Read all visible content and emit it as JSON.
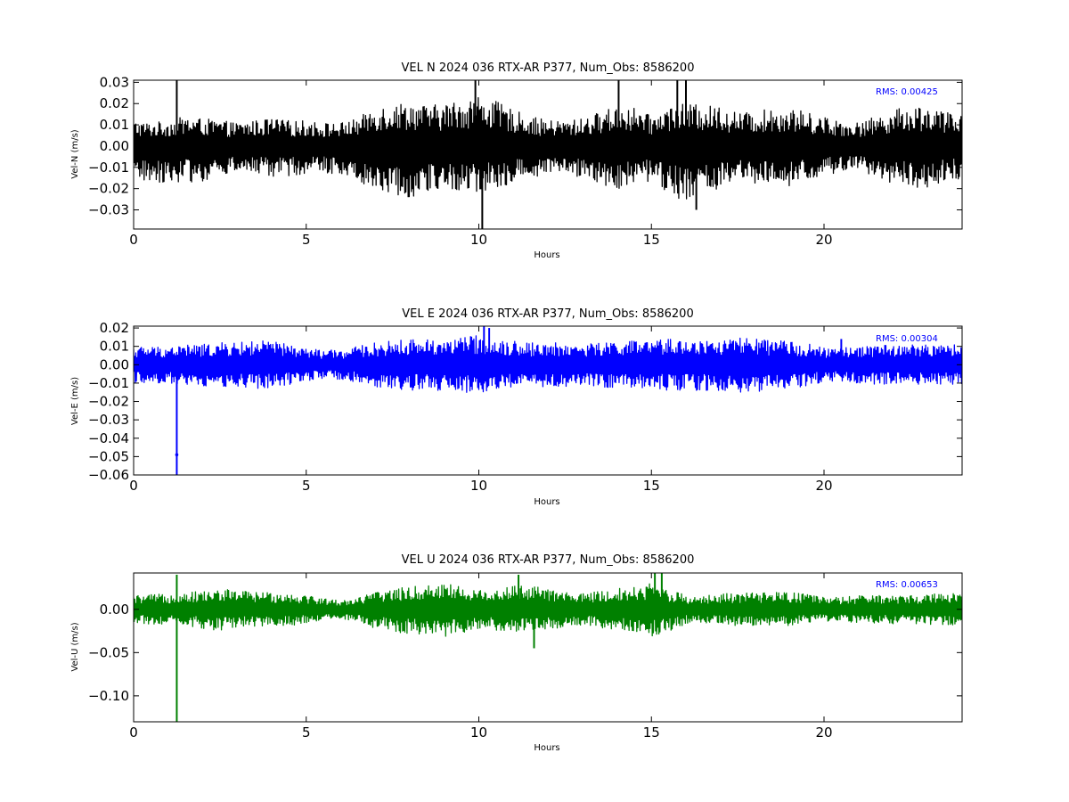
{
  "chart_data": [
    {
      "type": "line",
      "title": "VEL N 2024 036 RTX-AR  P377, Num_Obs: 8586200",
      "xlabel": "Hours",
      "ylabel": "Vel-N (m/s)",
      "xlim": [
        0,
        24
      ],
      "ylim": [
        -0.039,
        0.031
      ],
      "xticks": [
        0,
        5,
        10,
        15,
        20
      ],
      "xtick_labels": [
        "0",
        "5",
        "10",
        "15",
        "20"
      ],
      "yticks": [
        0.03,
        0.02,
        0.01,
        0.0,
        -0.01,
        -0.02,
        -0.03
      ],
      "ytick_labels": [
        "0.03",
        "0.02",
        "0.01",
        "0.00",
        "−0.01",
        "−0.02",
        "−0.03"
      ],
      "annotation": "RMS:  0.00425",
      "annotation_color": "#0000ff",
      "grid": false,
      "series": [
        {
          "color": "#000000",
          "rms": 0.00425,
          "envelope": {
            "x": [
              0,
              0.5,
              1,
              1.5,
              2,
              2.5,
              3,
              3.5,
              4,
              4.5,
              5,
              5.5,
              6,
              6.5,
              7,
              7.5,
              8,
              8.5,
              9,
              9.5,
              10,
              10.5,
              11,
              11.5,
              12,
              12.5,
              13,
              13.5,
              14,
              14.5,
              15,
              15.5,
              16,
              16.5,
              17,
              17.5,
              18,
              18.5,
              19,
              19.5,
              20,
              20.5,
              21,
              21.5,
              22,
              22.5,
              23,
              23.5,
              24
            ],
            "upper": [
              0.012,
              0.011,
              0.012,
              0.014,
              0.013,
              0.012,
              0.011,
              0.012,
              0.013,
              0.012,
              0.012,
              0.011,
              0.011,
              0.013,
              0.019,
              0.02,
              0.021,
              0.019,
              0.02,
              0.022,
              0.024,
              0.021,
              0.017,
              0.014,
              0.012,
              0.012,
              0.013,
              0.016,
              0.019,
              0.018,
              0.014,
              0.019,
              0.02,
              0.019,
              0.019,
              0.016,
              0.016,
              0.018,
              0.018,
              0.016,
              0.014,
              0.012,
              0.011,
              0.014,
              0.017,
              0.019,
              0.019,
              0.016,
              0.015
            ],
            "lower": [
              -0.016,
              -0.017,
              -0.017,
              -0.017,
              -0.017,
              -0.014,
              -0.012,
              -0.013,
              -0.015,
              -0.014,
              -0.013,
              -0.013,
              -0.013,
              -0.016,
              -0.021,
              -0.023,
              -0.024,
              -0.022,
              -0.021,
              -0.021,
              -0.023,
              -0.02,
              -0.017,
              -0.015,
              -0.013,
              -0.013,
              -0.015,
              -0.018,
              -0.02,
              -0.02,
              -0.016,
              -0.024,
              -0.025,
              -0.023,
              -0.02,
              -0.018,
              -0.018,
              -0.019,
              -0.02,
              -0.016,
              -0.014,
              -0.013,
              -0.012,
              -0.014,
              -0.018,
              -0.019,
              -0.02,
              -0.017,
              -0.015
            ]
          },
          "spikes": [
            {
              "x": 1.25,
              "y": 0.031
            },
            {
              "x": 9.9,
              "y": 0.031
            },
            {
              "x": 10.1,
              "y": -0.039
            },
            {
              "x": 14.05,
              "y": 0.031
            },
            {
              "x": 15.75,
              "y": 0.031
            },
            {
              "x": 16.0,
              "y": 0.031
            },
            {
              "x": 16.3,
              "y": -0.03
            }
          ]
        }
      ]
    },
    {
      "type": "line",
      "title": "VEL E 2024 036 RTX-AR  P377, Num_Obs: 8586200",
      "xlabel": "Hours",
      "ylabel": "Vel-E (m/s)",
      "xlim": [
        0,
        24
      ],
      "ylim": [
        -0.06,
        0.021
      ],
      "xticks": [
        0,
        5,
        10,
        15,
        20
      ],
      "xtick_labels": [
        "0",
        "5",
        "10",
        "15",
        "20"
      ],
      "yticks": [
        0.02,
        0.01,
        0.0,
        -0.01,
        -0.02,
        -0.03,
        -0.04,
        -0.05,
        -0.06
      ],
      "ytick_labels": [
        "0.02",
        "0.01",
        "0.00",
        "−0.01",
        "−0.02",
        "−0.03",
        "−0.04",
        "−0.05",
        "−0.06"
      ],
      "annotation": "RMS:  0.00304",
      "annotation_color": "#0000ff",
      "grid": false,
      "series": [
        {
          "color": "#0000ff",
          "rms": 0.00304,
          "envelope": {
            "x": [
              0,
              0.5,
              1,
              1.5,
              2,
              2.5,
              3,
              3.5,
              4,
              4.5,
              5,
              5.5,
              6,
              6.5,
              7,
              7.5,
              8,
              8.5,
              9,
              9.5,
              10,
              10.5,
              11,
              11.5,
              12,
              12.5,
              13,
              13.5,
              14,
              14.5,
              15,
              15.5,
              16,
              16.5,
              17,
              17.5,
              18,
              18.5,
              19,
              19.5,
              20,
              20.5,
              21,
              21.5,
              22,
              22.5,
              23,
              23.5,
              24
            ],
            "upper": [
              0.01,
              0.01,
              0.01,
              0.011,
              0.011,
              0.012,
              0.012,
              0.013,
              0.013,
              0.011,
              0.009,
              0.008,
              0.008,
              0.01,
              0.012,
              0.013,
              0.014,
              0.014,
              0.014,
              0.015,
              0.016,
              0.014,
              0.013,
              0.012,
              0.012,
              0.012,
              0.011,
              0.012,
              0.013,
              0.013,
              0.013,
              0.014,
              0.014,
              0.013,
              0.014,
              0.015,
              0.014,
              0.013,
              0.013,
              0.012,
              0.009,
              0.009,
              0.01,
              0.011,
              0.011,
              0.011,
              0.011,
              0.011,
              0.011
            ],
            "lower": [
              -0.01,
              -0.01,
              -0.01,
              -0.011,
              -0.012,
              -0.012,
              -0.012,
              -0.013,
              -0.013,
              -0.011,
              -0.009,
              -0.008,
              -0.008,
              -0.01,
              -0.012,
              -0.013,
              -0.014,
              -0.014,
              -0.014,
              -0.015,
              -0.016,
              -0.014,
              -0.013,
              -0.012,
              -0.012,
              -0.012,
              -0.011,
              -0.012,
              -0.013,
              -0.013,
              -0.013,
              -0.014,
              -0.014,
              -0.014,
              -0.014,
              -0.016,
              -0.015,
              -0.013,
              -0.013,
              -0.012,
              -0.009,
              -0.009,
              -0.01,
              -0.011,
              -0.011,
              -0.011,
              -0.011,
              -0.011,
              -0.011
            ]
          },
          "spikes": [
            {
              "x": 1.25,
              "y": -0.06
            },
            {
              "x": 10.15,
              "y": 0.021
            },
            {
              "x": 10.3,
              "y": 0.02
            },
            {
              "x": 20.5,
              "y": 0.014
            }
          ]
        }
      ]
    },
    {
      "type": "line",
      "title": "VEL U 2024 036 RTX-AR  P377, Num_Obs: 8586200",
      "xlabel": "Hours",
      "ylabel": "Vel-U (m/s)",
      "xlim": [
        0,
        24
      ],
      "ylim": [
        -0.13,
        0.042
      ],
      "xticks": [
        0,
        5,
        10,
        15,
        20
      ],
      "xtick_labels": [
        "0",
        "5",
        "10",
        "15",
        "20"
      ],
      "yticks": [
        0.0,
        -0.05,
        -0.1
      ],
      "ytick_labels": [
        "0.00",
        "−0.05",
        "−0.10"
      ],
      "annotation": "RMS:  0.00653",
      "annotation_color": "#0000ff",
      "grid": false,
      "series": [
        {
          "color": "#008000",
          "rms": 0.00653,
          "envelope": {
            "x": [
              0,
              0.5,
              1,
              1.5,
              2,
              2.5,
              3,
              3.5,
              4,
              4.5,
              5,
              5.5,
              6,
              6.5,
              7,
              7.5,
              8,
              8.5,
              9,
              9.5,
              10,
              10.5,
              11,
              11.5,
              12,
              12.5,
              13,
              13.5,
              14,
              14.5,
              15,
              15.5,
              16,
              16.5,
              17,
              17.5,
              18,
              18.5,
              19,
              19.5,
              20,
              20.5,
              21,
              21.5,
              22,
              22.5,
              23,
              23.5,
              24
            ],
            "upper": [
              0.016,
              0.017,
              0.018,
              0.02,
              0.021,
              0.023,
              0.023,
              0.02,
              0.02,
              0.019,
              0.017,
              0.013,
              0.01,
              0.014,
              0.02,
              0.024,
              0.026,
              0.028,
              0.032,
              0.026,
              0.022,
              0.024,
              0.028,
              0.027,
              0.024,
              0.02,
              0.018,
              0.021,
              0.024,
              0.026,
              0.031,
              0.024,
              0.016,
              0.016,
              0.018,
              0.019,
              0.019,
              0.019,
              0.021,
              0.017,
              0.014,
              0.014,
              0.016,
              0.016,
              0.016,
              0.016,
              0.018,
              0.019,
              0.019
            ],
            "lower": [
              -0.016,
              -0.017,
              -0.017,
              -0.019,
              -0.022,
              -0.025,
              -0.022,
              -0.02,
              -0.02,
              -0.019,
              -0.016,
              -0.012,
              -0.01,
              -0.016,
              -0.022,
              -0.026,
              -0.029,
              -0.029,
              -0.032,
              -0.028,
              -0.022,
              -0.024,
              -0.026,
              -0.026,
              -0.024,
              -0.02,
              -0.018,
              -0.022,
              -0.025,
              -0.026,
              -0.031,
              -0.026,
              -0.017,
              -0.016,
              -0.018,
              -0.019,
              -0.019,
              -0.019,
              -0.02,
              -0.016,
              -0.014,
              -0.013,
              -0.016,
              -0.016,
              -0.017,
              -0.017,
              -0.018,
              -0.018,
              -0.018
            ]
          },
          "spikes": [
            {
              "x": 1.25,
              "y": -0.13
            },
            {
              "x": 1.25,
              "y": 0.04
            },
            {
              "x": 11.15,
              "y": 0.04
            },
            {
              "x": 11.6,
              "y": -0.045
            },
            {
              "x": 15.1,
              "y": 0.042
            },
            {
              "x": 15.3,
              "y": 0.042
            }
          ]
        }
      ]
    }
  ]
}
